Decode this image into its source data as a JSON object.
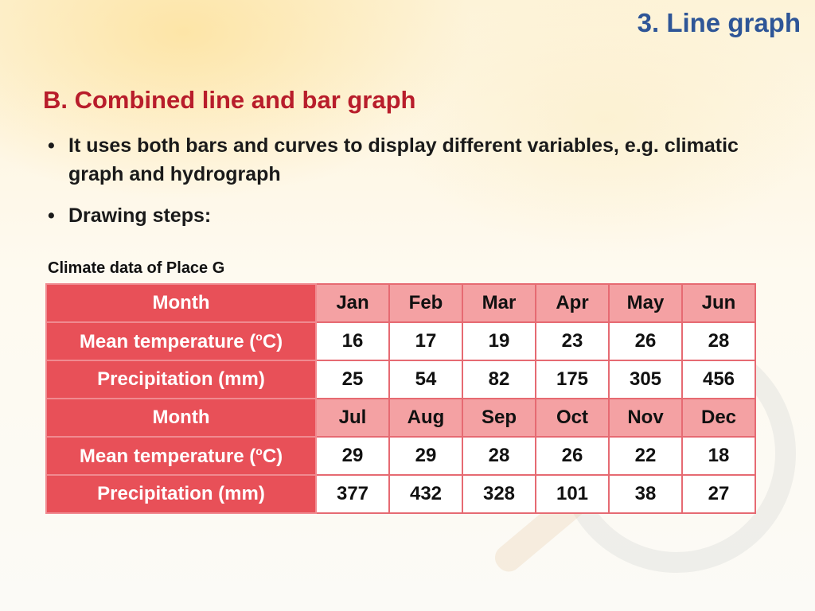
{
  "header": {
    "title": "3. Line graph"
  },
  "section": {
    "heading": "B. Combined line and bar graph",
    "bullets": [
      "It uses both bars and curves to display different variables, e.g. climatic graph and hydrograph",
      "Drawing steps:"
    ]
  },
  "table": {
    "caption": "Climate data of Place G",
    "labels": {
      "month": "Month",
      "temp_prefix": "Mean temperature (",
      "temp_sup": "o",
      "temp_suffix": "C)",
      "precip": "Precipitation (mm)"
    },
    "h1": {
      "months": [
        "Jan",
        "Feb",
        "Mar",
        "Apr",
        "May",
        "Jun"
      ],
      "temp": [
        "16",
        "17",
        "19",
        "23",
        "26",
        "28"
      ],
      "precip": [
        "25",
        "54",
        "82",
        "175",
        "305",
        "456"
      ]
    },
    "h2": {
      "months": [
        "Jul",
        "Aug",
        "Sep",
        "Oct",
        "Nov",
        "Dec"
      ],
      "temp": [
        "29",
        "29",
        "28",
        "26",
        "22",
        "18"
      ],
      "precip": [
        "377",
        "432",
        "328",
        "101",
        "38",
        "27"
      ]
    }
  },
  "colors": {
    "title_blue": "#2e5597",
    "heading_red": "#b81d2b",
    "row_header_red": "#e85058",
    "month_row_pink": "#f4a1a3"
  }
}
